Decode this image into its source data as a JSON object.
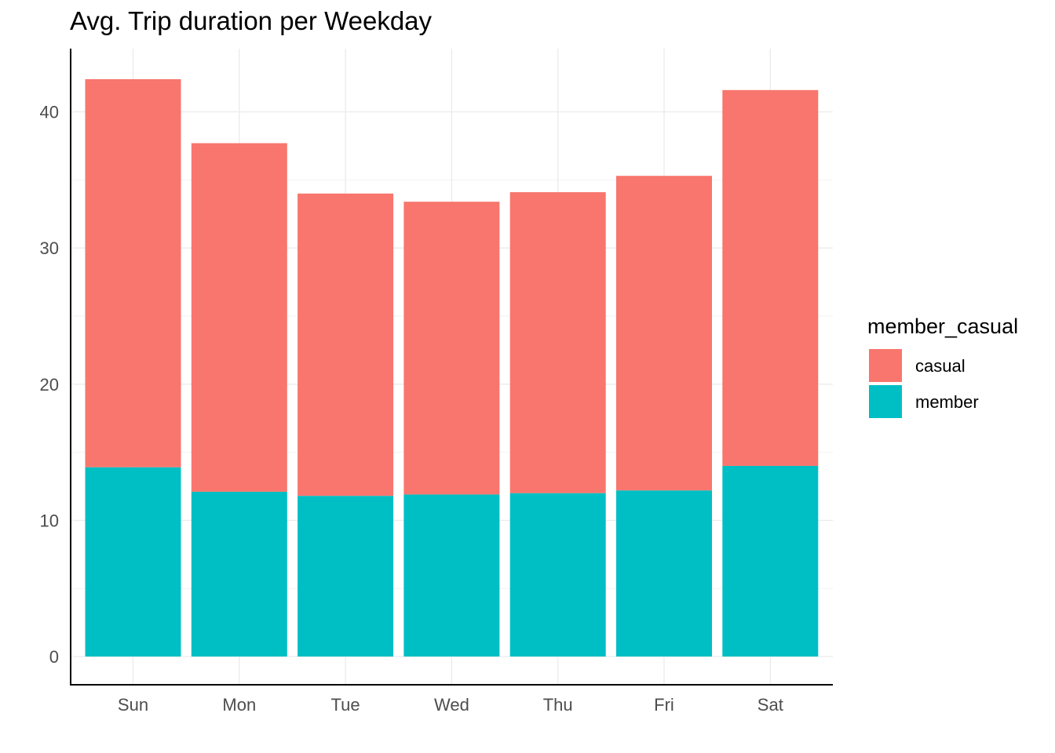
{
  "chart_data": {
    "type": "bar",
    "stacked": true,
    "title": "Avg. Trip duration per Weekday",
    "xlabel": "",
    "ylabel": "",
    "categories": [
      "Sun",
      "Mon",
      "Tue",
      "Wed",
      "Thu",
      "Fri",
      "Sat"
    ],
    "series": [
      {
        "name": "member",
        "values": [
          13.9,
          12.1,
          11.8,
          11.9,
          12.0,
          12.2,
          14.0
        ],
        "color": "#00BFC4"
      },
      {
        "name": "casual",
        "values": [
          28.5,
          25.6,
          22.2,
          21.5,
          22.1,
          23.1,
          27.6
        ],
        "color": "#F8766D"
      }
    ],
    "y_ticks": [
      "0",
      "10",
      "20",
      "30",
      "40"
    ],
    "ylim": [
      0,
      44
    ],
    "grid": true,
    "legend": {
      "title": "member_casual",
      "position": "right",
      "items": [
        {
          "label": "casual",
          "color": "#F8766D"
        },
        {
          "label": "member",
          "color": "#00BFC4"
        }
      ]
    }
  }
}
